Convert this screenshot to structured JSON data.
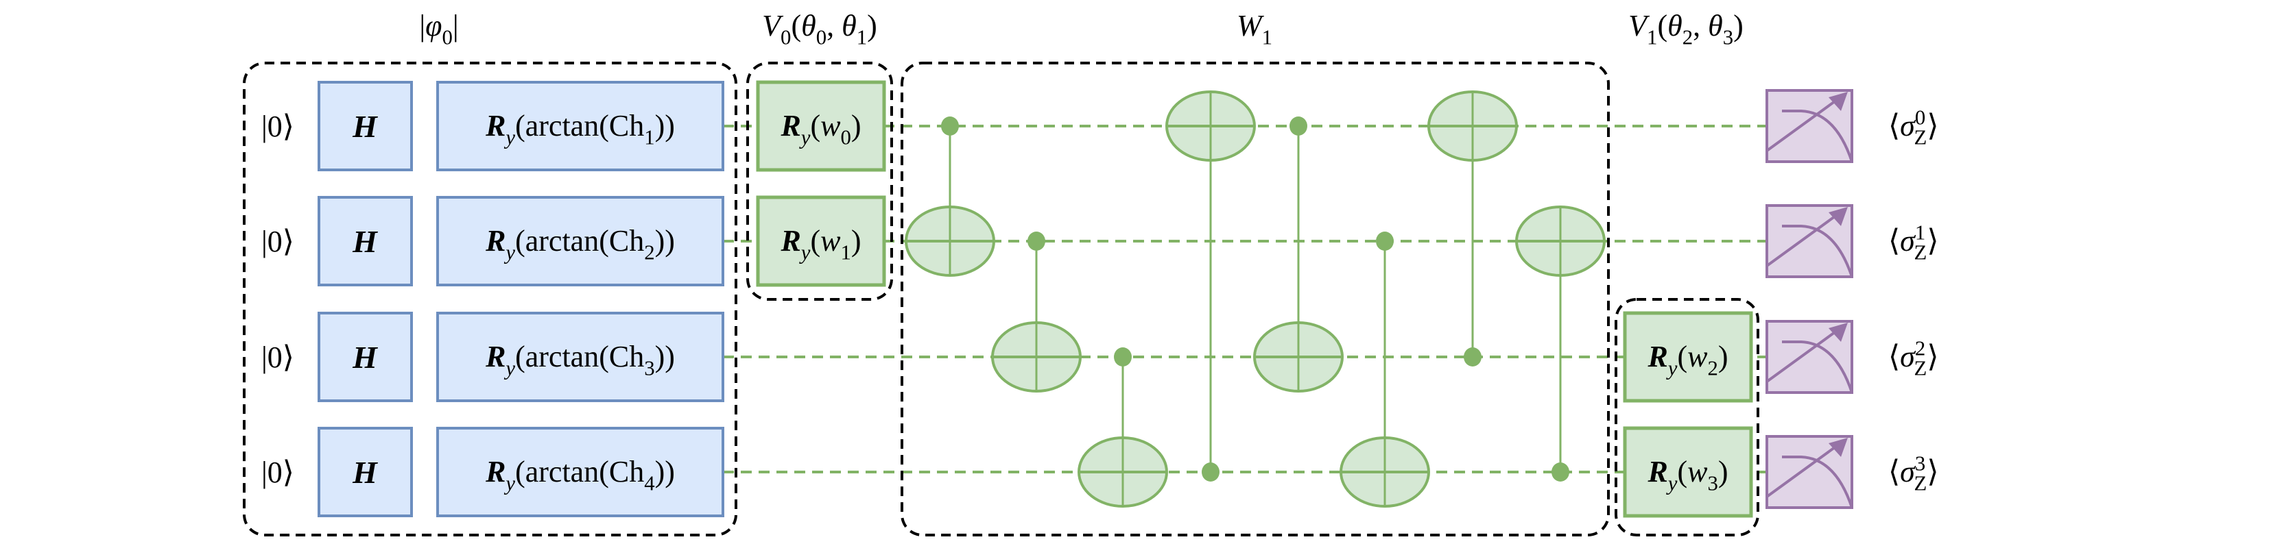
{
  "colors": {
    "encode_fill": "#dae8fc",
    "encode_stroke": "#6c8ebf",
    "param_fill": "#d5e8d4",
    "param_stroke": "#82b366",
    "measure_fill": "#e1d5e7",
    "measure_stroke": "#9673a6",
    "wire": "#82b366",
    "group_border": "#000000"
  },
  "group_titles": [
    {
      "id": "phi0",
      "math": [
        {
          "t": "|"
        },
        {
          "t": "φ",
          "i": true
        },
        {
          "t": "0",
          "sub": true
        },
        {
          "t": "|"
        }
      ]
    },
    {
      "id": "v0",
      "math": [
        {
          "t": "V",
          "i": true
        },
        {
          "t": "0",
          "sub": true
        },
        {
          "t": "("
        },
        {
          "t": "θ",
          "i": true
        },
        {
          "t": "0",
          "sub": true
        },
        {
          "t": ", "
        },
        {
          "t": "θ",
          "i": true
        },
        {
          "t": "1",
          "sub": true
        },
        {
          "t": ")"
        }
      ]
    },
    {
      "id": "w1",
      "math": [
        {
          "t": "W",
          "i": true
        },
        {
          "t": "1",
          "sub": true
        }
      ]
    },
    {
      "id": "v1",
      "math": [
        {
          "t": "V",
          "i": true
        },
        {
          "t": "1",
          "sub": true
        },
        {
          "t": "("
        },
        {
          "t": "θ",
          "i": true
        },
        {
          "t": "2",
          "sub": true
        },
        {
          "t": ", "
        },
        {
          "t": "θ",
          "i": true
        },
        {
          "t": "3",
          "sub": true
        },
        {
          "t": ")"
        }
      ]
    }
  ],
  "qubits": [
    {
      "init": "|0⟩",
      "hadamard": "H",
      "encode": [
        {
          "t": "R",
          "b": true
        },
        {
          "t": "y",
          "sub": true,
          "i": true
        },
        {
          "t": "(arctan(Ch"
        },
        {
          "t": "1",
          "sub": true
        },
        {
          "t": "))"
        }
      ],
      "param": [
        {
          "t": "R",
          "b": true
        },
        {
          "t": "y",
          "sub": true,
          "i": true
        },
        {
          "t": "("
        },
        {
          "t": "w",
          "i": true
        },
        {
          "t": "0",
          "sub": true
        },
        {
          "t": ")"
        }
      ],
      "observable": [
        {
          "t": "⟨"
        },
        {
          "t": "σ",
          "i": true
        },
        {
          "t": "0",
          "sup": true
        },
        {
          "t": "Z",
          "sub": true,
          "back": true
        },
        {
          "t": "⟩"
        }
      ]
    },
    {
      "init": "|0⟩",
      "hadamard": "H",
      "encode": [
        {
          "t": "R",
          "b": true
        },
        {
          "t": "y",
          "sub": true,
          "i": true
        },
        {
          "t": "(arctan(Ch"
        },
        {
          "t": "2",
          "sub": true
        },
        {
          "t": "))"
        }
      ],
      "param": [
        {
          "t": "R",
          "b": true
        },
        {
          "t": "y",
          "sub": true,
          "i": true
        },
        {
          "t": "("
        },
        {
          "t": "w",
          "i": true
        },
        {
          "t": "1",
          "sub": true
        },
        {
          "t": ")"
        }
      ],
      "observable": [
        {
          "t": "⟨"
        },
        {
          "t": "σ",
          "i": true
        },
        {
          "t": "1",
          "sup": true
        },
        {
          "t": "Z",
          "sub": true,
          "back": true
        },
        {
          "t": "⟩"
        }
      ]
    },
    {
      "init": "|0⟩",
      "hadamard": "H",
      "encode": [
        {
          "t": "R",
          "b": true
        },
        {
          "t": "y",
          "sub": true,
          "i": true
        },
        {
          "t": "(arctan(Ch"
        },
        {
          "t": "3",
          "sub": true
        },
        {
          "t": "))"
        }
      ],
      "param": [
        {
          "t": "R",
          "b": true
        },
        {
          "t": "y",
          "sub": true,
          "i": true
        },
        {
          "t": "("
        },
        {
          "t": "w",
          "i": true
        },
        {
          "t": "2",
          "sub": true
        },
        {
          "t": ")"
        }
      ],
      "observable": [
        {
          "t": "⟨"
        },
        {
          "t": "σ",
          "i": true
        },
        {
          "t": "2",
          "sup": true
        },
        {
          "t": "Z",
          "sub": true,
          "back": true
        },
        {
          "t": "⟩"
        }
      ]
    },
    {
      "init": "|0⟩",
      "hadamard": "H",
      "encode": [
        {
          "t": "R",
          "b": true
        },
        {
          "t": "y",
          "sub": true,
          "i": true
        },
        {
          "t": "(arctan(Ch"
        },
        {
          "t": "4",
          "sub": true
        },
        {
          "t": "))"
        }
      ],
      "param": [
        {
          "t": "R",
          "b": true
        },
        {
          "t": "y",
          "sub": true,
          "i": true
        },
        {
          "t": "("
        },
        {
          "t": "w",
          "i": true
        },
        {
          "t": "3",
          "sub": true
        },
        {
          "t": ")"
        }
      ],
      "observable": [
        {
          "t": "⟨"
        },
        {
          "t": "σ",
          "i": true
        },
        {
          "t": "3",
          "sup": true
        },
        {
          "t": "Z",
          "sub": true,
          "back": true
        },
        {
          "t": "⟩"
        }
      ]
    }
  ],
  "cnot_gates": [
    {
      "control": 0,
      "target": 1
    },
    {
      "control": 1,
      "target": 2
    },
    {
      "control": 2,
      "target": 3
    },
    {
      "control": 3,
      "target": 0
    },
    {
      "control": 0,
      "target": 2
    },
    {
      "control": 1,
      "target": 3
    },
    {
      "control": 2,
      "target": 0
    },
    {
      "control": 3,
      "target": 1
    }
  ],
  "measurement_icon": "meter-icon"
}
